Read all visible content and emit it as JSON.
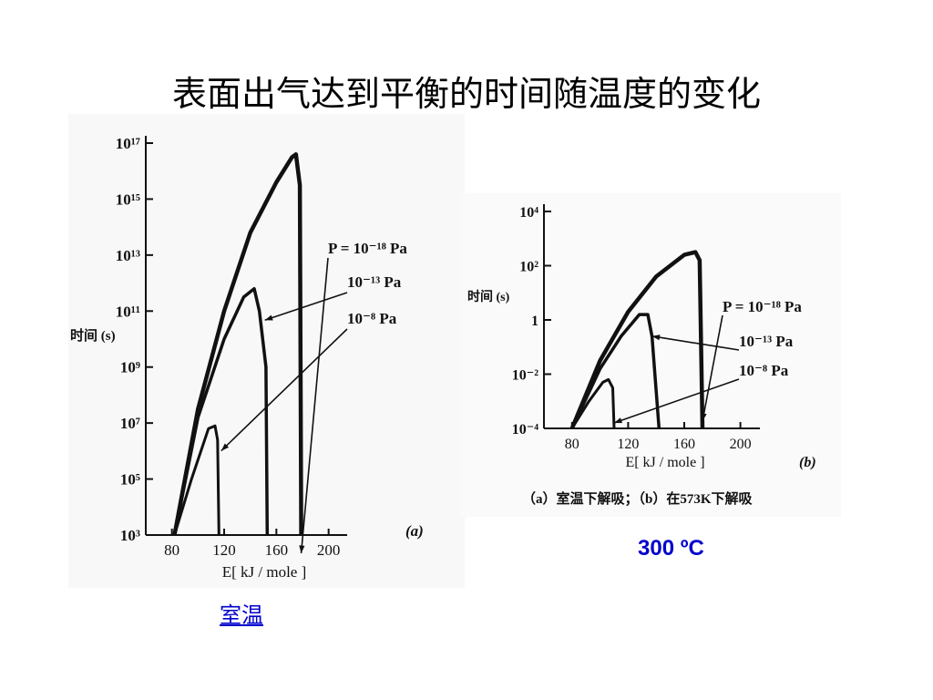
{
  "slide": {
    "title": "表面出气达到平衡的时间随温度的变化"
  },
  "labels": {
    "panel_a": "室温",
    "panel_b": "300 ºC"
  },
  "colors": {
    "ink": "#111111",
    "accent_blue": "#0000cc"
  },
  "chart_data": [
    {
      "type": "line",
      "panel_tag": "(a)",
      "xlabel": "E[ kJ / mole ]",
      "ylabel": "时间 (s)",
      "x_ticks": [
        80,
        120,
        160,
        200
      ],
      "y_ticks": [
        {
          "exp": 3,
          "label": "10³"
        },
        {
          "exp": 5,
          "label": "10⁵"
        },
        {
          "exp": 7,
          "label": "10⁷"
        },
        {
          "exp": 9,
          "label": "10⁹"
        },
        {
          "exp": 11,
          "label": "10¹¹"
        },
        {
          "exp": 13,
          "label": "10¹³"
        },
        {
          "exp": 15,
          "label": "10¹⁵"
        },
        {
          "exp": 17,
          "label": "10¹⁷"
        }
      ],
      "xlim": [
        60,
        210
      ],
      "ylim_log10": [
        3,
        17
      ],
      "y_scale": "log",
      "series": [
        {
          "name": "P = 10⁻¹⁸ Pa",
          "points": [
            [
              82,
              3.0
            ],
            [
              100,
              7.5
            ],
            [
              120,
              11.0
            ],
            [
              140,
              13.8
            ],
            [
              160,
              15.6
            ],
            [
              172,
              16.5
            ],
            [
              175,
              16.6
            ],
            [
              178,
              15.5
            ],
            [
              179,
              3.0
            ]
          ]
        },
        {
          "name": "10⁻¹³ Pa",
          "points": [
            [
              82,
              3.0
            ],
            [
              100,
              7.2
            ],
            [
              120,
              10.0
            ],
            [
              135,
              11.5
            ],
            [
              143,
              11.8
            ],
            [
              147,
              11.0
            ],
            [
              152,
              9.0
            ],
            [
              153,
              3.0
            ]
          ]
        },
        {
          "name": "10⁻⁸ Pa",
          "points": [
            [
              82,
              3.0
            ],
            [
              95,
              5.0
            ],
            [
              108,
              6.8
            ],
            [
              113,
              6.9
            ],
            [
              115,
              6.4
            ],
            [
              116,
              3.0
            ]
          ]
        }
      ],
      "annotations": [
        "P = 10⁻¹⁸ Pa",
        "10⁻¹³ Pa",
        "10⁻⁸ Pa"
      ]
    },
    {
      "type": "line",
      "panel_tag": "(b)",
      "xlabel": "E[ kJ / mole ]",
      "ylabel": "时间 (s)",
      "x_ticks": [
        80,
        120,
        160,
        200
      ],
      "y_ticks": [
        {
          "exp": -4,
          "label": "10⁻⁴"
        },
        {
          "exp": -2,
          "label": "10⁻²"
        },
        {
          "exp": 0,
          "label": "1"
        },
        {
          "exp": 2,
          "label": "10²"
        },
        {
          "exp": 4,
          "label": "10⁴"
        }
      ],
      "xlim": [
        60,
        210
      ],
      "ylim_log10": [
        -4,
        4
      ],
      "y_scale": "log",
      "series": [
        {
          "name": "P = 10⁻¹⁸ Pa",
          "points": [
            [
              80,
              -4.0
            ],
            [
              100,
              -1.5
            ],
            [
              120,
              0.3
            ],
            [
              140,
              1.6
            ],
            [
              160,
              2.4
            ],
            [
              168,
              2.5
            ],
            [
              171,
              2.2
            ],
            [
              173,
              -4.0
            ]
          ]
        },
        {
          "name": "10⁻¹³ Pa",
          "points": [
            [
              80,
              -4.0
            ],
            [
              100,
              -1.8
            ],
            [
              115,
              -0.6
            ],
            [
              128,
              0.2
            ],
            [
              134,
              0.2
            ],
            [
              137,
              -0.6
            ],
            [
              142,
              -4.0
            ]
          ]
        },
        {
          "name": "10⁻⁸ Pa",
          "points": [
            [
              80,
              -4.0
            ],
            [
              92,
              -3.0
            ],
            [
              102,
              -2.3
            ],
            [
              106,
              -2.2
            ],
            [
              109,
              -2.5
            ],
            [
              110,
              -4.0
            ]
          ]
        }
      ],
      "annotations": [
        "P = 10⁻¹⁸ Pa",
        "10⁻¹³ Pa",
        "10⁻⁸ Pa"
      ],
      "caption": "（a）室温下解吸；（b）在573K下解吸"
    }
  ]
}
